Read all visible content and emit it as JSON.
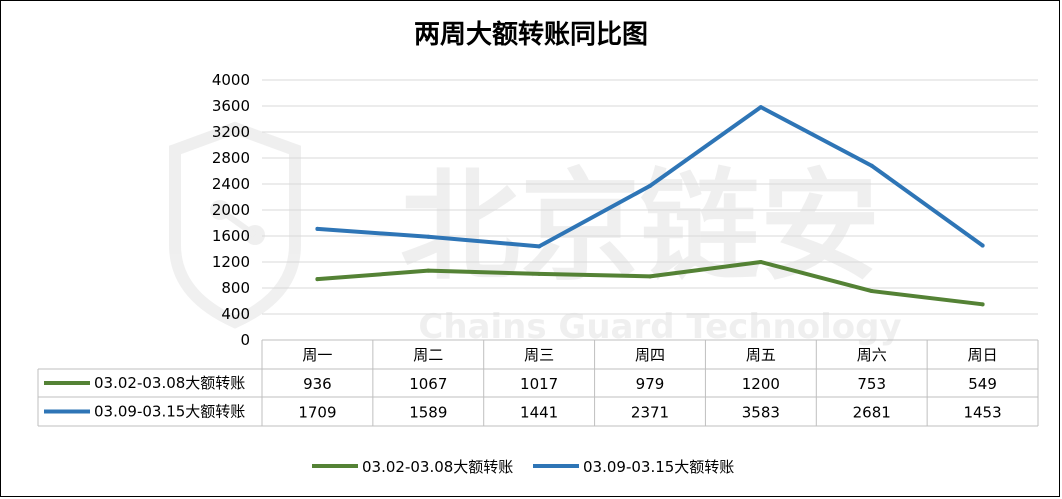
{
  "chart_data": {
    "type": "line",
    "title": "两周大额转账同比图",
    "categories": [
      "周一",
      "周二",
      "周三",
      "周四",
      "周五",
      "周六",
      "周日"
    ],
    "series": [
      {
        "name": "03.02-03.08大额转账",
        "color": "#548235",
        "values": [
          936,
          1067,
          1017,
          979,
          1200,
          753,
          549
        ]
      },
      {
        "name": "03.09-03.15大额转账",
        "color": "#2E75B6",
        "values": [
          1709,
          1589,
          1441,
          2371,
          3583,
          2681,
          1453
        ]
      }
    ],
    "ylim": [
      0,
      4000
    ],
    "yticks": [
      0,
      400,
      800,
      1200,
      1600,
      2000,
      2400,
      2800,
      3200,
      3600,
      4000
    ],
    "grid": true,
    "legend": "bottom",
    "data_table": true
  },
  "watermark": {
    "text_cn": "北京链安",
    "text_en": "Chains Guard Technology"
  }
}
